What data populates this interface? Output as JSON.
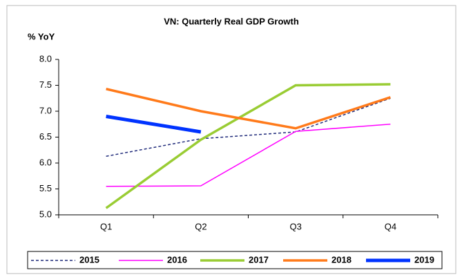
{
  "chart_data": {
    "type": "line",
    "title": "VN: Quarterly Real GDP Growth",
    "y_label": "% YoY",
    "categories": [
      "Q1",
      "Q2",
      "Q3",
      "Q4"
    ],
    "series": [
      {
        "name": "2015",
        "color": "#1f2a7a",
        "dashed": true,
        "width": 1.5,
        "values": [
          6.13,
          6.47,
          6.6,
          7.25
        ]
      },
      {
        "name": "2016",
        "color": "#ff00ff",
        "width": 1.5,
        "values": [
          5.55,
          5.56,
          6.61,
          6.75
        ]
      },
      {
        "name": "2017",
        "color": "#99cc33",
        "width": 3.5,
        "values": [
          5.13,
          6.45,
          7.5,
          7.52
        ]
      },
      {
        "name": "2018",
        "color": "#ff7a1a",
        "width": 3.5,
        "values": [
          7.43,
          7.0,
          6.67,
          7.27
        ]
      },
      {
        "name": "2019",
        "color": "#0033ff",
        "width": 5,
        "values": [
          6.9,
          6.6,
          null,
          null
        ]
      }
    ],
    "ylim": [
      5.0,
      8.0
    ],
    "yticks": [
      {
        "value": 5.0,
        "label": "5.0"
      },
      5.5,
      {
        "value": 6.0,
        "label": "6.0"
      },
      6.5,
      {
        "value": 7.0,
        "label": "7.0"
      },
      7.5,
      {
        "value": 8.0,
        "label": "8.0"
      }
    ],
    "legend": "bottom"
  }
}
